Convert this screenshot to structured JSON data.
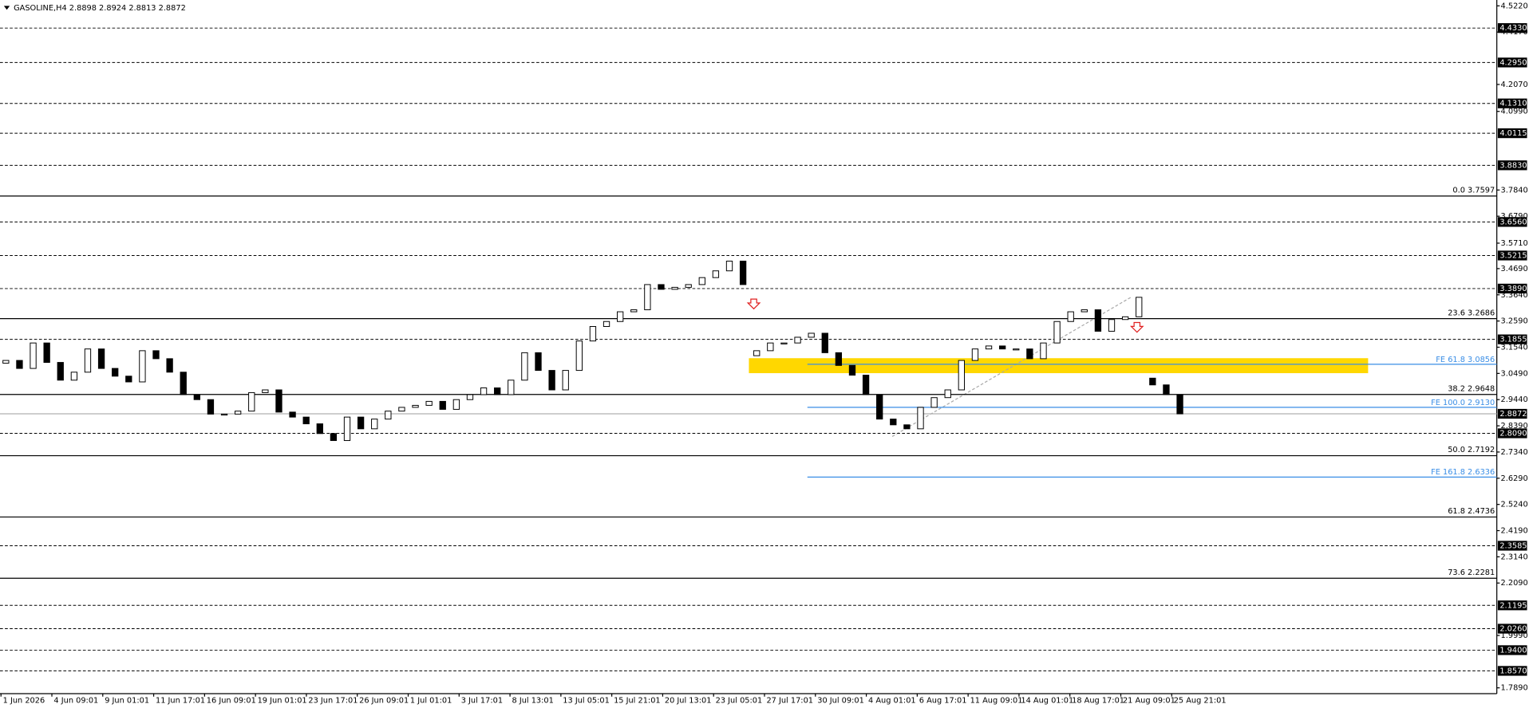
{
  "chart_data": {
    "type": "candlestick",
    "title": "GASOLINE,H4  2.8898 2.8924 2.8813 2.8872",
    "categories": [
      "1 Jun 2026",
      "4 Jun 09:01",
      "9 Jun 01:01",
      "11 Jun 17:01",
      "16 Jun 09:01",
      "19 Jun 01:01",
      "23 Jun 17:01",
      "26 Jun 09:01",
      "1 Jul 01:01",
      "3 Jul 17:01",
      "8 Jul 13:01",
      "13 Jul 05:01",
      "15 Jul 21:01",
      "20 Jul 13:01",
      "23 Jul 05:01",
      "27 Jul 17:01",
      "30 Jul 09:01",
      "4 Aug 01:01",
      "6 Aug 17:01",
      "11 Aug 09:01",
      "14 Aug 01:01",
      "18 Aug 17:01",
      "21 Aug 09:01",
      "25 Aug 21:01"
    ],
    "open": [
      3.09,
      3.101,
      3.069,
      3.171,
      3.093,
      3.022,
      3.054,
      3.147,
      3.069,
      3.038,
      3.015,
      3.14,
      3.108,
      3.054,
      2.964,
      2.944,
      2.886,
      2.886,
      2.898,
      2.972,
      2.983,
      2.894,
      2.874,
      2.847,
      2.808,
      2.78,
      2.874,
      2.827,
      2.866,
      2.898,
      2.913,
      2.921,
      2.937,
      2.905,
      2.944,
      2.964,
      2.991,
      2.964,
      3.022,
      3.132,
      3.061,
      2.983,
      3.061,
      3.179,
      3.237,
      3.257,
      3.296,
      3.304,
      3.405,
      3.386,
      3.394,
      3.405,
      3.433,
      3.46,
      3.499,
      3.12,
      3.14,
      3.171,
      3.171,
      3.194,
      3.21,
      3.132,
      3.081,
      3.042,
      2.964,
      2.866,
      2.843,
      2.827,
      2.913,
      2.952,
      2.983,
      3.101,
      3.147,
      3.159,
      3.147,
      3.147,
      3.108,
      3.171,
      3.257,
      3.296,
      3.304,
      3.218,
      3.265,
      3.276,
      3.03,
      3.003,
      2.964
    ],
    "close": [
      3.101,
      3.069,
      3.171,
      3.093,
      3.022,
      3.054,
      3.147,
      3.069,
      3.038,
      3.015,
      3.14,
      3.108,
      3.054,
      2.964,
      2.944,
      2.886,
      2.886,
      2.898,
      2.972,
      2.983,
      2.894,
      2.874,
      2.847,
      2.808,
      2.78,
      2.874,
      2.827,
      2.866,
      2.898,
      2.913,
      2.921,
      2.937,
      2.905,
      2.944,
      2.964,
      2.991,
      2.964,
      3.022,
      3.132,
      3.061,
      2.983,
      3.061,
      3.179,
      3.237,
      3.257,
      3.296,
      3.304,
      3.405,
      3.386,
      3.394,
      3.405,
      3.433,
      3.46,
      3.499,
      3.405,
      3.14,
      3.171,
      3.171,
      3.194,
      3.21,
      3.132,
      3.081,
      3.042,
      2.964,
      2.866,
      2.843,
      2.827,
      2.913,
      2.952,
      2.983,
      3.101,
      3.147,
      3.159,
      3.147,
      3.147,
      3.108,
      3.171,
      3.257,
      3.296,
      3.304,
      3.218,
      3.265,
      3.276,
      3.354,
      3.003,
      2.964,
      2.887
    ],
    "ylim": [
      1.789,
      4.522
    ],
    "yticks": [
      {
        "value": 4.522,
        "label": "4.5220"
      },
      {
        "value": 4.417,
        "label": "4.4170"
      },
      {
        "value": 4.207,
        "label": "4.2070"
      },
      {
        "value": 4.099,
        "label": "4.0990"
      },
      {
        "value": 3.784,
        "label": "3.7840"
      },
      {
        "value": 3.679,
        "label": "3.6790"
      },
      {
        "value": 3.571,
        "label": "3.5710"
      },
      {
        "value": 3.469,
        "label": "3.4690"
      },
      {
        "value": 3.364,
        "label": "3.3640"
      },
      {
        "value": 3.259,
        "label": "3.2590"
      },
      {
        "value": 3.154,
        "label": "3.1540"
      },
      {
        "value": 3.049,
        "label": "3.0490"
      },
      {
        "value": 2.944,
        "label": "2.9440"
      },
      {
        "value": 2.839,
        "label": "2.8390"
      },
      {
        "value": 2.734,
        "label": "2.7340"
      },
      {
        "value": 2.629,
        "label": "2.6290"
      },
      {
        "value": 2.524,
        "label": "2.5240"
      },
      {
        "value": 2.419,
        "label": "2.4190"
      },
      {
        "value": 2.314,
        "label": "2.3140"
      },
      {
        "value": 2.209,
        "label": "2.2090"
      },
      {
        "value": 1.999,
        "label": "1.9990"
      },
      {
        "value": 1.789,
        "label": "1.7890"
      }
    ],
    "levels": [
      {
        "value": 4.433,
        "label": "4.4330"
      },
      {
        "value": 4.295,
        "label": "4.2950"
      },
      {
        "value": 4.131,
        "label": "4.1310"
      },
      {
        "value": 4.0115,
        "label": "4.0115"
      },
      {
        "value": 3.883,
        "label": "3.8830"
      },
      {
        "value": 3.656,
        "label": "3.6560"
      },
      {
        "value": 3.5215,
        "label": "3.5215"
      },
      {
        "value": 3.389,
        "label": "3.3890"
      },
      {
        "value": 3.1855,
        "label": "3.1855"
      },
      {
        "value": 2.809,
        "label": "2.8090"
      },
      {
        "value": 2.3585,
        "label": "2.3585"
      },
      {
        "value": 2.1195,
        "label": "2.1195"
      },
      {
        "value": 2.026,
        "label": "2.0260"
      },
      {
        "value": 1.94,
        "label": "1.9400"
      },
      {
        "value": 1.857,
        "label": "1.8570"
      }
    ],
    "fibonacci": [
      {
        "value": 3.7597,
        "label": "0.0 3.7597"
      },
      {
        "value": 3.2686,
        "label": "23.6 3.2686"
      },
      {
        "value": 2.9648,
        "label": "38.2 2.9648"
      },
      {
        "value": 2.7192,
        "label": "50.0 2.7192"
      },
      {
        "value": 2.4736,
        "label": "61.8 2.4736"
      },
      {
        "value": 2.2281,
        "label": "73.6 2.2281"
      }
    ],
    "expansion": [
      {
        "value": 3.0856,
        "label": "FE 61.8 3.0856"
      },
      {
        "value": 2.913,
        "label": "FE 100.0 2.9130"
      },
      {
        "value": 2.6336,
        "label": "FE 161.8 2.6336"
      }
    ],
    "expansion_color": "#3a8ee6",
    "current_price": {
      "value": 2.8872,
      "label": "2.8872"
    },
    "zone": [
      3.11,
      3.05
    ],
    "zone_color": "#ffd700"
  }
}
